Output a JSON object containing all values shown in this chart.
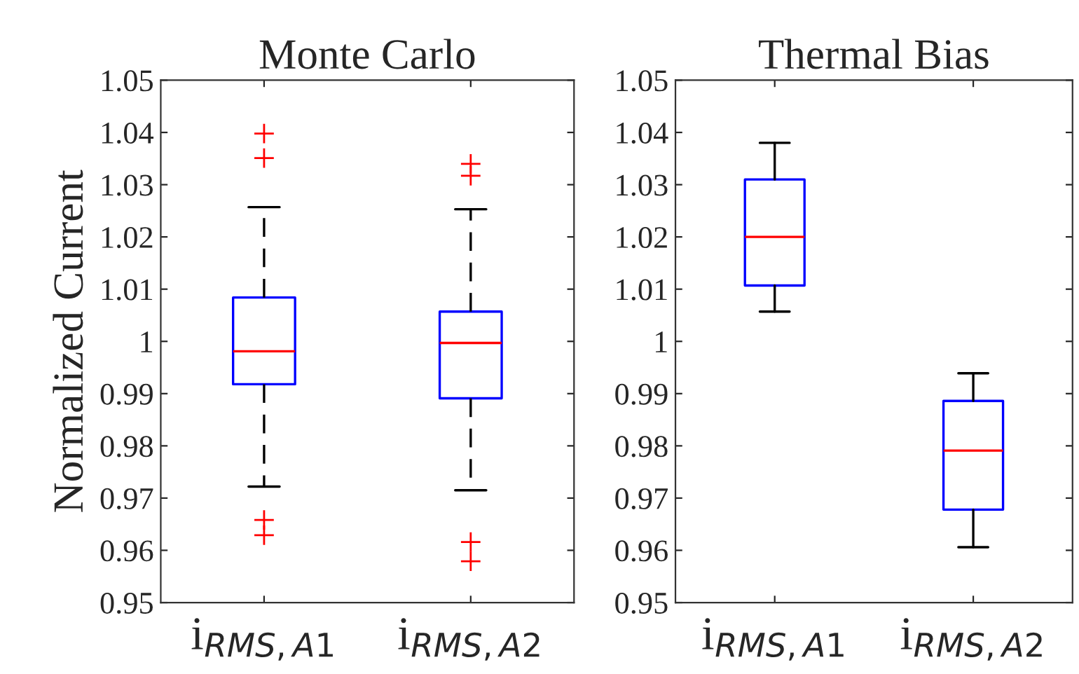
{
  "chart_data": [
    {
      "type": "box",
      "title": "Monte Carlo",
      "ylabel": "Normalized Current",
      "categories": [
        "i$_{RMS,A1}$",
        "i$_{RMS,A2}$"
      ],
      "ylim": [
        0.95,
        1.05
      ],
      "yticks": [
        0.95,
        0.96,
        0.97,
        0.98,
        0.99,
        1,
        1.01,
        1.02,
        1.03,
        1.04,
        1.05
      ],
      "line_style": "dashed",
      "marker": "cross",
      "series": [
        {
          "color": "#0000ff",
          "boxes": [
            {
              "low": 0.9722,
              "q1": 0.9918,
              "median": 0.9981,
              "q3": 1.0084,
              "high": 1.0257,
              "outliers": [
                1.0398,
                1.0351,
                0.9658,
                0.9629
              ]
            },
            {
              "low": 0.9715,
              "q1": 0.9891,
              "median": 0.9997,
              "q3": 1.0057,
              "high": 1.0253,
              "outliers": [
                1.034,
                1.0317,
                0.9616,
                0.9579
              ]
            }
          ]
        }
      ]
    },
    {
      "type": "box",
      "title": "Thermal Bias",
      "categories": [
        "i$_{RMS,A1}$",
        "i$_{RMS,A2}$"
      ],
      "ylim": [
        0.95,
        1.05
      ],
      "yticks": [
        0.95,
        0.96,
        0.97,
        0.98,
        0.99,
        1,
        1.01,
        1.02,
        1.03,
        1.04,
        1.05
      ],
      "line_style": "solid",
      "series": [
        {
          "color": "#0000ff",
          "boxes": [
            {
              "low": 1.0057,
              "q1": 1.0107,
              "median": 1.02,
              "q3": 1.031,
              "high": 1.038
            },
            {
              "low": 0.9606,
              "q1": 0.9678,
              "median": 0.9791,
              "q3": 0.9886,
              "high": 0.9939
            }
          ]
        }
      ]
    }
  ]
}
